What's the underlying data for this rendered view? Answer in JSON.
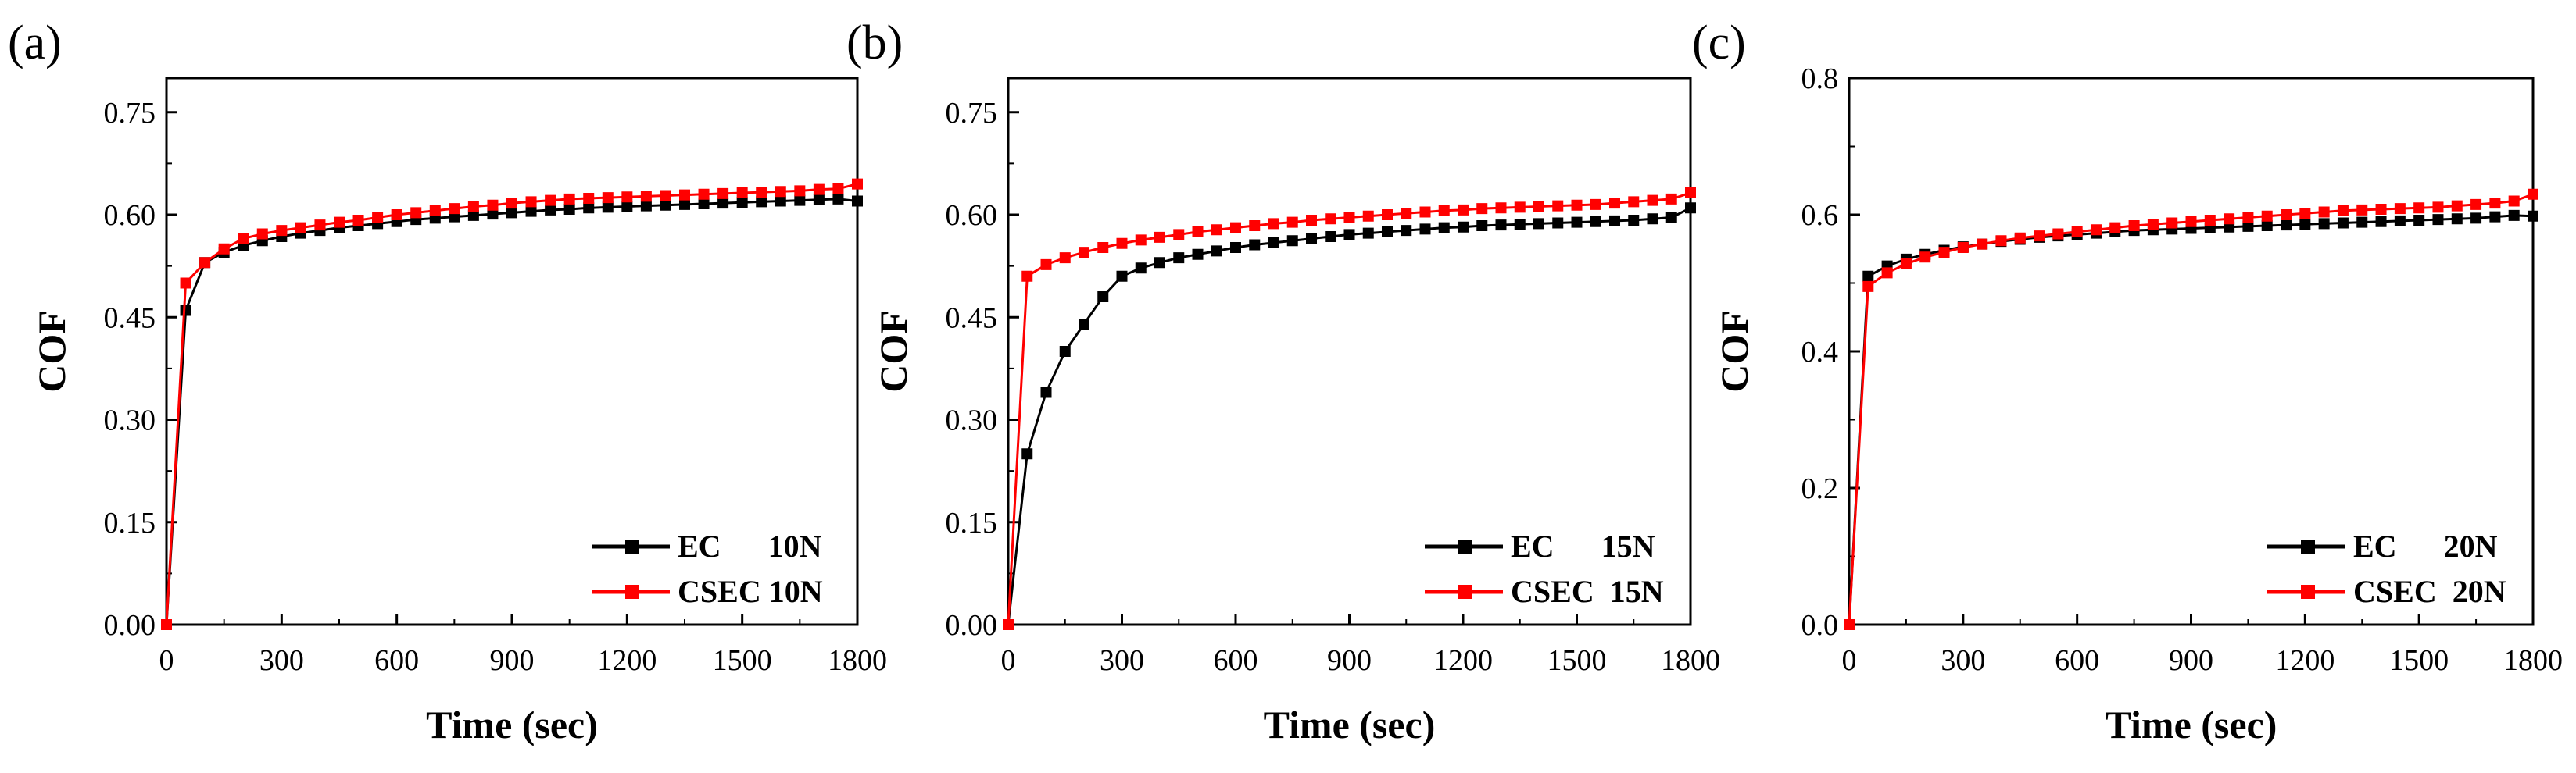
{
  "chart_data": [
    {
      "type": "line",
      "panel_label": "(a)",
      "xlabel": "Time (sec)",
      "ylabel": "COF",
      "xlim": [
        0,
        1800
      ],
      "ylim": [
        0,
        0.8
      ],
      "xticks": [
        0,
        300,
        600,
        900,
        1200,
        1500,
        1800
      ],
      "xtick_labels": [
        "0",
        "300",
        "600",
        "900",
        "1200",
        "1500",
        "1800"
      ],
      "yticks": [
        0,
        0.15,
        0.3,
        0.45,
        0.6,
        0.75
      ],
      "ytick_labels": [
        "0.00",
        "0.15",
        "0.30",
        "0.45",
        "0.60",
        "0.75"
      ],
      "legend_position": "bottom-right",
      "series": [
        {
          "name": "EC 10N",
          "legend_text": "EC      10N",
          "color": "#000000",
          "x": [
            0,
            50,
            100,
            150,
            200,
            250,
            300,
            350,
            400,
            450,
            500,
            550,
            600,
            650,
            700,
            750,
            800,
            850,
            900,
            950,
            1000,
            1050,
            1100,
            1150,
            1200,
            1250,
            1300,
            1350,
            1400,
            1450,
            1500,
            1550,
            1600,
            1650,
            1700,
            1750,
            1800
          ],
          "values": [
            0,
            0.46,
            0.53,
            0.545,
            0.555,
            0.562,
            0.568,
            0.573,
            0.577,
            0.581,
            0.584,
            0.587,
            0.59,
            0.593,
            0.595,
            0.597,
            0.599,
            0.601,
            0.603,
            0.605,
            0.607,
            0.608,
            0.61,
            0.611,
            0.612,
            0.613,
            0.614,
            0.615,
            0.616,
            0.617,
            0.618,
            0.619,
            0.62,
            0.621,
            0.622,
            0.623,
            0.62
          ]
        },
        {
          "name": "CSEC 10N",
          "legend_text": "CSEC 10N",
          "color": "#ff0000",
          "x": [
            0,
            50,
            100,
            150,
            200,
            250,
            300,
            350,
            400,
            450,
            500,
            550,
            600,
            650,
            700,
            750,
            800,
            850,
            900,
            950,
            1000,
            1050,
            1100,
            1150,
            1200,
            1250,
            1300,
            1350,
            1400,
            1450,
            1500,
            1550,
            1600,
            1650,
            1700,
            1750,
            1800
          ],
          "values": [
            0,
            0.5,
            0.53,
            0.55,
            0.565,
            0.572,
            0.577,
            0.581,
            0.585,
            0.589,
            0.592,
            0.596,
            0.6,
            0.603,
            0.606,
            0.609,
            0.612,
            0.614,
            0.617,
            0.619,
            0.621,
            0.623,
            0.624,
            0.625,
            0.626,
            0.627,
            0.628,
            0.629,
            0.63,
            0.631,
            0.632,
            0.633,
            0.634,
            0.635,
            0.637,
            0.638,
            0.645
          ]
        }
      ]
    },
    {
      "type": "line",
      "panel_label": "(b)",
      "xlabel": "Time (sec)",
      "ylabel": "COF",
      "xlim": [
        0,
        1800
      ],
      "ylim": [
        0,
        0.8
      ],
      "xticks": [
        0,
        300,
        600,
        900,
        1200,
        1500,
        1800
      ],
      "xtick_labels": [
        "0",
        "300",
        "600",
        "900",
        "1200",
        "1500",
        "1800"
      ],
      "yticks": [
        0,
        0.15,
        0.3,
        0.45,
        0.6,
        0.75
      ],
      "ytick_labels": [
        "0.00",
        "0.15",
        "0.30",
        "0.45",
        "0.60",
        "0.75"
      ],
      "legend_position": "bottom-right",
      "series": [
        {
          "name": "EC 15N",
          "legend_text": "EC      15N",
          "color": "#000000",
          "x": [
            0,
            50,
            100,
            150,
            200,
            250,
            300,
            350,
            400,
            450,
            500,
            550,
            600,
            650,
            700,
            750,
            800,
            850,
            900,
            950,
            1000,
            1050,
            1100,
            1150,
            1200,
            1250,
            1300,
            1350,
            1400,
            1450,
            1500,
            1550,
            1600,
            1650,
            1700,
            1750,
            1800
          ],
          "values": [
            0,
            0.25,
            0.34,
            0.4,
            0.44,
            0.48,
            0.51,
            0.522,
            0.53,
            0.537,
            0.542,
            0.547,
            0.552,
            0.556,
            0.559,
            0.562,
            0.565,
            0.568,
            0.571,
            0.573,
            0.575,
            0.577,
            0.579,
            0.581,
            0.582,
            0.584,
            0.585,
            0.586,
            0.587,
            0.588,
            0.589,
            0.59,
            0.591,
            0.592,
            0.594,
            0.596,
            0.61
          ]
        },
        {
          "name": "CSEC 15N",
          "legend_text": "CSEC  15N",
          "color": "#ff0000",
          "x": [
            0,
            50,
            100,
            150,
            200,
            250,
            300,
            350,
            400,
            450,
            500,
            550,
            600,
            650,
            700,
            750,
            800,
            850,
            900,
            950,
            1000,
            1050,
            1100,
            1150,
            1200,
            1250,
            1300,
            1350,
            1400,
            1450,
            1500,
            1550,
            1600,
            1650,
            1700,
            1750,
            1800
          ],
          "values": [
            0,
            0.51,
            0.527,
            0.537,
            0.545,
            0.552,
            0.558,
            0.563,
            0.567,
            0.571,
            0.575,
            0.578,
            0.581,
            0.584,
            0.587,
            0.589,
            0.592,
            0.594,
            0.596,
            0.598,
            0.6,
            0.602,
            0.604,
            0.606,
            0.607,
            0.609,
            0.61,
            0.611,
            0.612,
            0.613,
            0.614,
            0.615,
            0.617,
            0.619,
            0.621,
            0.623,
            0.632
          ]
        }
      ]
    },
    {
      "type": "line",
      "panel_label": "(c)",
      "xlabel": "Time (sec)",
      "ylabel": "COF",
      "xlim": [
        0,
        1800
      ],
      "ylim": [
        0,
        0.8
      ],
      "xticks": [
        0,
        300,
        600,
        900,
        1200,
        1500,
        1800
      ],
      "xtick_labels": [
        "0",
        "300",
        "600",
        "900",
        "1200",
        "1500",
        "1800"
      ],
      "yticks": [
        0,
        0.2,
        0.4,
        0.6,
        0.8
      ],
      "ytick_labels": [
        "0.0",
        "0.2",
        "0.4",
        "0.6",
        "0.8"
      ],
      "legend_position": "bottom-right",
      "series": [
        {
          "name": "EC 20N",
          "legend_text": "EC      20N",
          "color": "#000000",
          "x": [
            0,
            50,
            100,
            150,
            200,
            250,
            300,
            350,
            400,
            450,
            500,
            550,
            600,
            650,
            700,
            750,
            800,
            850,
            900,
            950,
            1000,
            1050,
            1100,
            1150,
            1200,
            1250,
            1300,
            1350,
            1400,
            1450,
            1500,
            1550,
            1600,
            1650,
            1700,
            1750,
            1800
          ],
          "values": [
            0,
            0.51,
            0.525,
            0.535,
            0.542,
            0.548,
            0.553,
            0.557,
            0.561,
            0.564,
            0.567,
            0.569,
            0.571,
            0.573,
            0.575,
            0.577,
            0.578,
            0.579,
            0.58,
            0.581,
            0.582,
            0.583,
            0.584,
            0.585,
            0.586,
            0.587,
            0.588,
            0.589,
            0.59,
            0.591,
            0.592,
            0.593,
            0.594,
            0.595,
            0.597,
            0.599,
            0.598
          ]
        },
        {
          "name": "CSEC 20N",
          "legend_text": "CSEC  20N",
          "color": "#ff0000",
          "x": [
            0,
            50,
            100,
            150,
            200,
            250,
            300,
            350,
            400,
            450,
            500,
            550,
            600,
            650,
            700,
            750,
            800,
            850,
            900,
            950,
            1000,
            1050,
            1100,
            1150,
            1200,
            1250,
            1300,
            1350,
            1400,
            1450,
            1500,
            1550,
            1600,
            1650,
            1700,
            1750,
            1800
          ],
          "values": [
            0,
            0.495,
            0.515,
            0.528,
            0.538,
            0.545,
            0.552,
            0.557,
            0.562,
            0.566,
            0.569,
            0.572,
            0.575,
            0.578,
            0.581,
            0.584,
            0.586,
            0.588,
            0.59,
            0.592,
            0.594,
            0.596,
            0.598,
            0.6,
            0.602,
            0.604,
            0.606,
            0.607,
            0.608,
            0.609,
            0.61,
            0.611,
            0.613,
            0.615,
            0.617,
            0.62,
            0.63
          ]
        }
      ]
    }
  ]
}
